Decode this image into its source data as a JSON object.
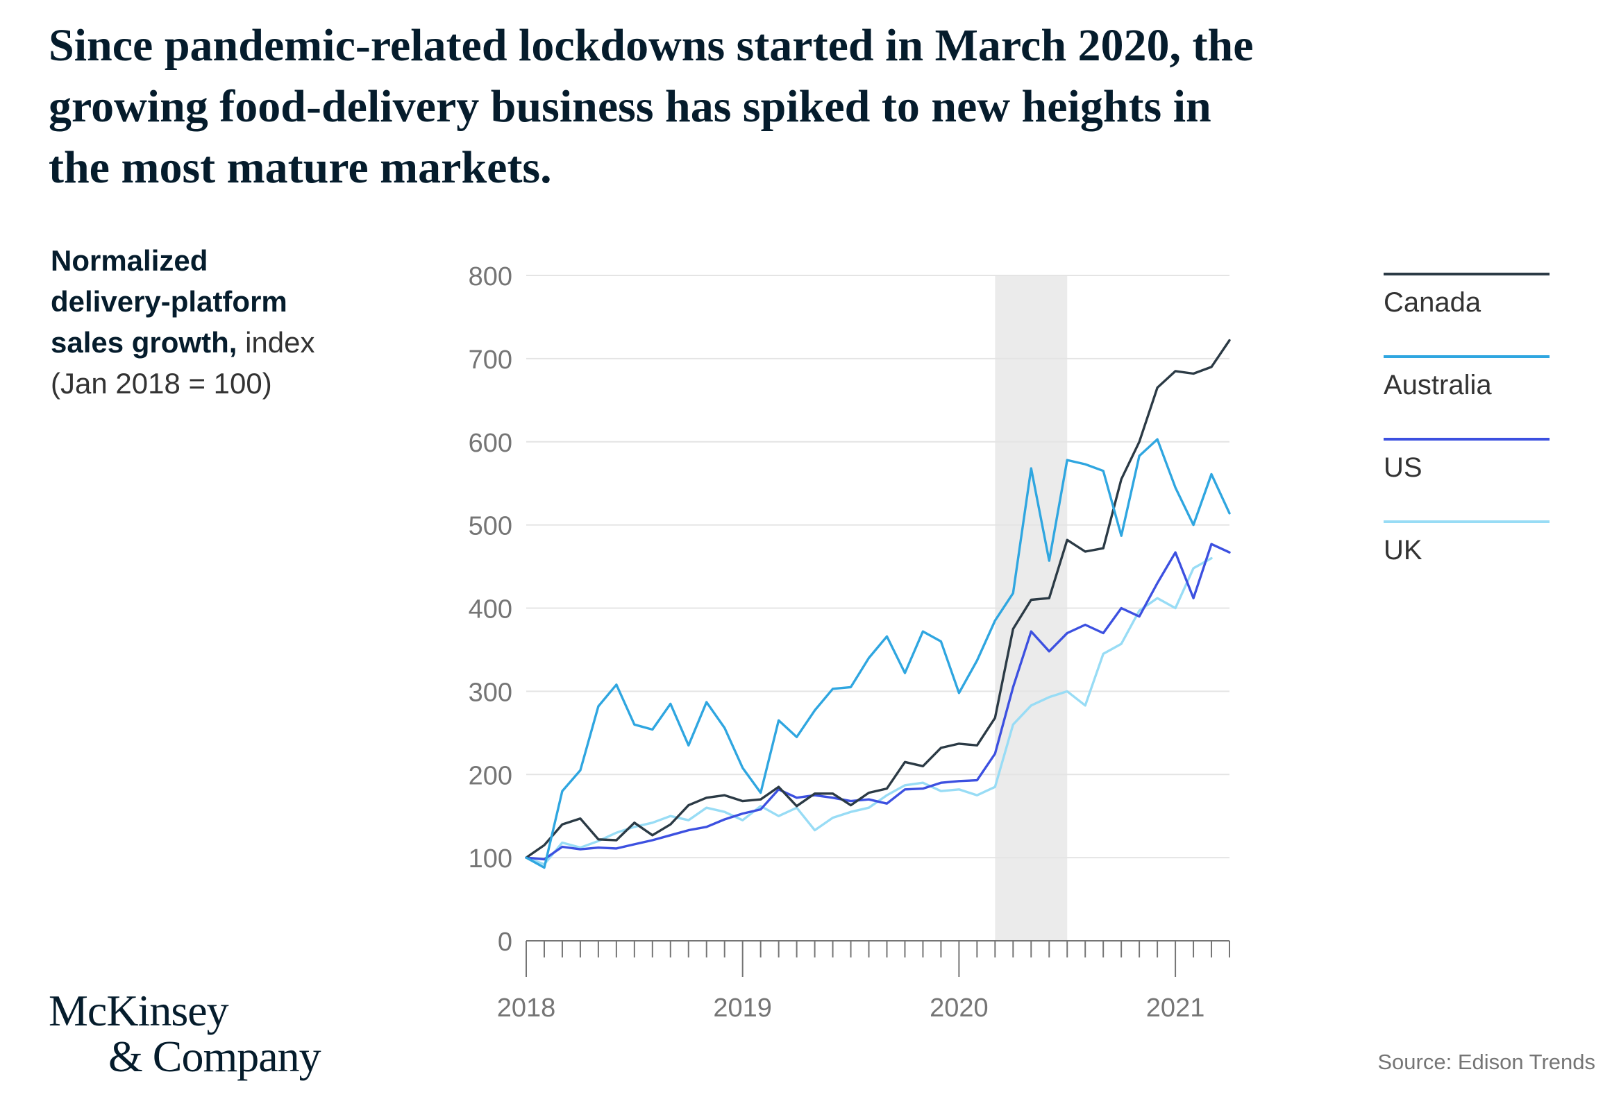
{
  "headline": {
    "line1": "Since pandemic-related lockdowns started in March 2020, the",
    "line2": "growing food-delivery business has spiked to new heights in",
    "line3": "the most mature markets."
  },
  "logo": {
    "line1": "McKinsey",
    "line2": "& Company"
  },
  "source": "Source: Edison Trends",
  "colors": {
    "Canada": "#2b3a45",
    "Australia": "#2fa6e0",
    "US": "#3c50e0",
    "UK": "#98dcf5",
    "shade": "#ebebeb",
    "grid": "#e4e4e4",
    "axis_text": "#757575"
  },
  "chart_data": {
    "type": "line",
    "ylabel_bold_1": "Normalized",
    "ylabel_bold_2": "delivery-platform",
    "ylabel_bold_3": "sales growth,",
    "ylabel_rest_3": " index",
    "ylabel_line4": "(Jan 2018 = 100)",
    "ylim": [
      0,
      800
    ],
    "yticks": [
      0,
      100,
      200,
      300,
      400,
      500,
      600,
      700,
      800
    ],
    "xtick_labels": [
      "2018",
      "2019",
      "2020",
      "2021"
    ],
    "x_start": "2018-01",
    "x_end": "2021-04",
    "shaded_region": [
      "2020-03",
      "2020-07"
    ],
    "grid": true,
    "legend_position": "right",
    "x": [
      "2018-01",
      "2018-02",
      "2018-03",
      "2018-04",
      "2018-05",
      "2018-06",
      "2018-07",
      "2018-08",
      "2018-09",
      "2018-10",
      "2018-11",
      "2018-12",
      "2019-01",
      "2019-02",
      "2019-03",
      "2019-04",
      "2019-05",
      "2019-06",
      "2019-07",
      "2019-08",
      "2019-09",
      "2019-10",
      "2019-11",
      "2019-12",
      "2020-01",
      "2020-02",
      "2020-03",
      "2020-04",
      "2020-05",
      "2020-06",
      "2020-07",
      "2020-08",
      "2020-09",
      "2020-10",
      "2020-11",
      "2020-12",
      "2021-01",
      "2021-02",
      "2021-03",
      "2021-04"
    ],
    "series": [
      {
        "name": "UK",
        "values": [
          100,
          92,
          118,
          112,
          120,
          130,
          137,
          142,
          150,
          145,
          160,
          155,
          145,
          162,
          150,
          160,
          133,
          148,
          155,
          160,
          175,
          187,
          190,
          180,
          182,
          175,
          185,
          260,
          283,
          293,
          300,
          283,
          345,
          357,
          397,
          412,
          400,
          448,
          460,
          null
        ]
      },
      {
        "name": "US",
        "values": [
          100,
          98,
          113,
          110,
          112,
          111,
          116,
          121,
          127,
          133,
          137,
          146,
          153,
          158,
          182,
          172,
          175,
          172,
          168,
          170,
          165,
          182,
          183,
          190,
          192,
          193,
          225,
          305,
          372,
          348,
          370,
          380,
          370,
          400,
          390,
          430,
          467,
          412,
          477,
          467
        ]
      },
      {
        "name": "Canada",
        "values": [
          100,
          115,
          140,
          147,
          122,
          121,
          142,
          127,
          140,
          163,
          172,
          175,
          168,
          170,
          185,
          162,
          177,
          177,
          163,
          178,
          183,
          215,
          210,
          232,
          237,
          235,
          268,
          375,
          410,
          412,
          482,
          468,
          472,
          555,
          600,
          665,
          685,
          682,
          690,
          722
        ]
      },
      {
        "name": "Australia",
        "values": [
          100,
          88,
          180,
          205,
          282,
          308,
          260,
          254,
          285,
          235,
          287,
          256,
          208,
          178,
          265,
          245,
          277,
          303,
          305,
          340,
          366,
          322,
          372,
          360,
          298,
          337,
          385,
          418,
          568,
          457,
          578,
          573,
          565,
          487,
          583,
          603,
          545,
          500,
          561,
          514
        ]
      }
    ]
  }
}
